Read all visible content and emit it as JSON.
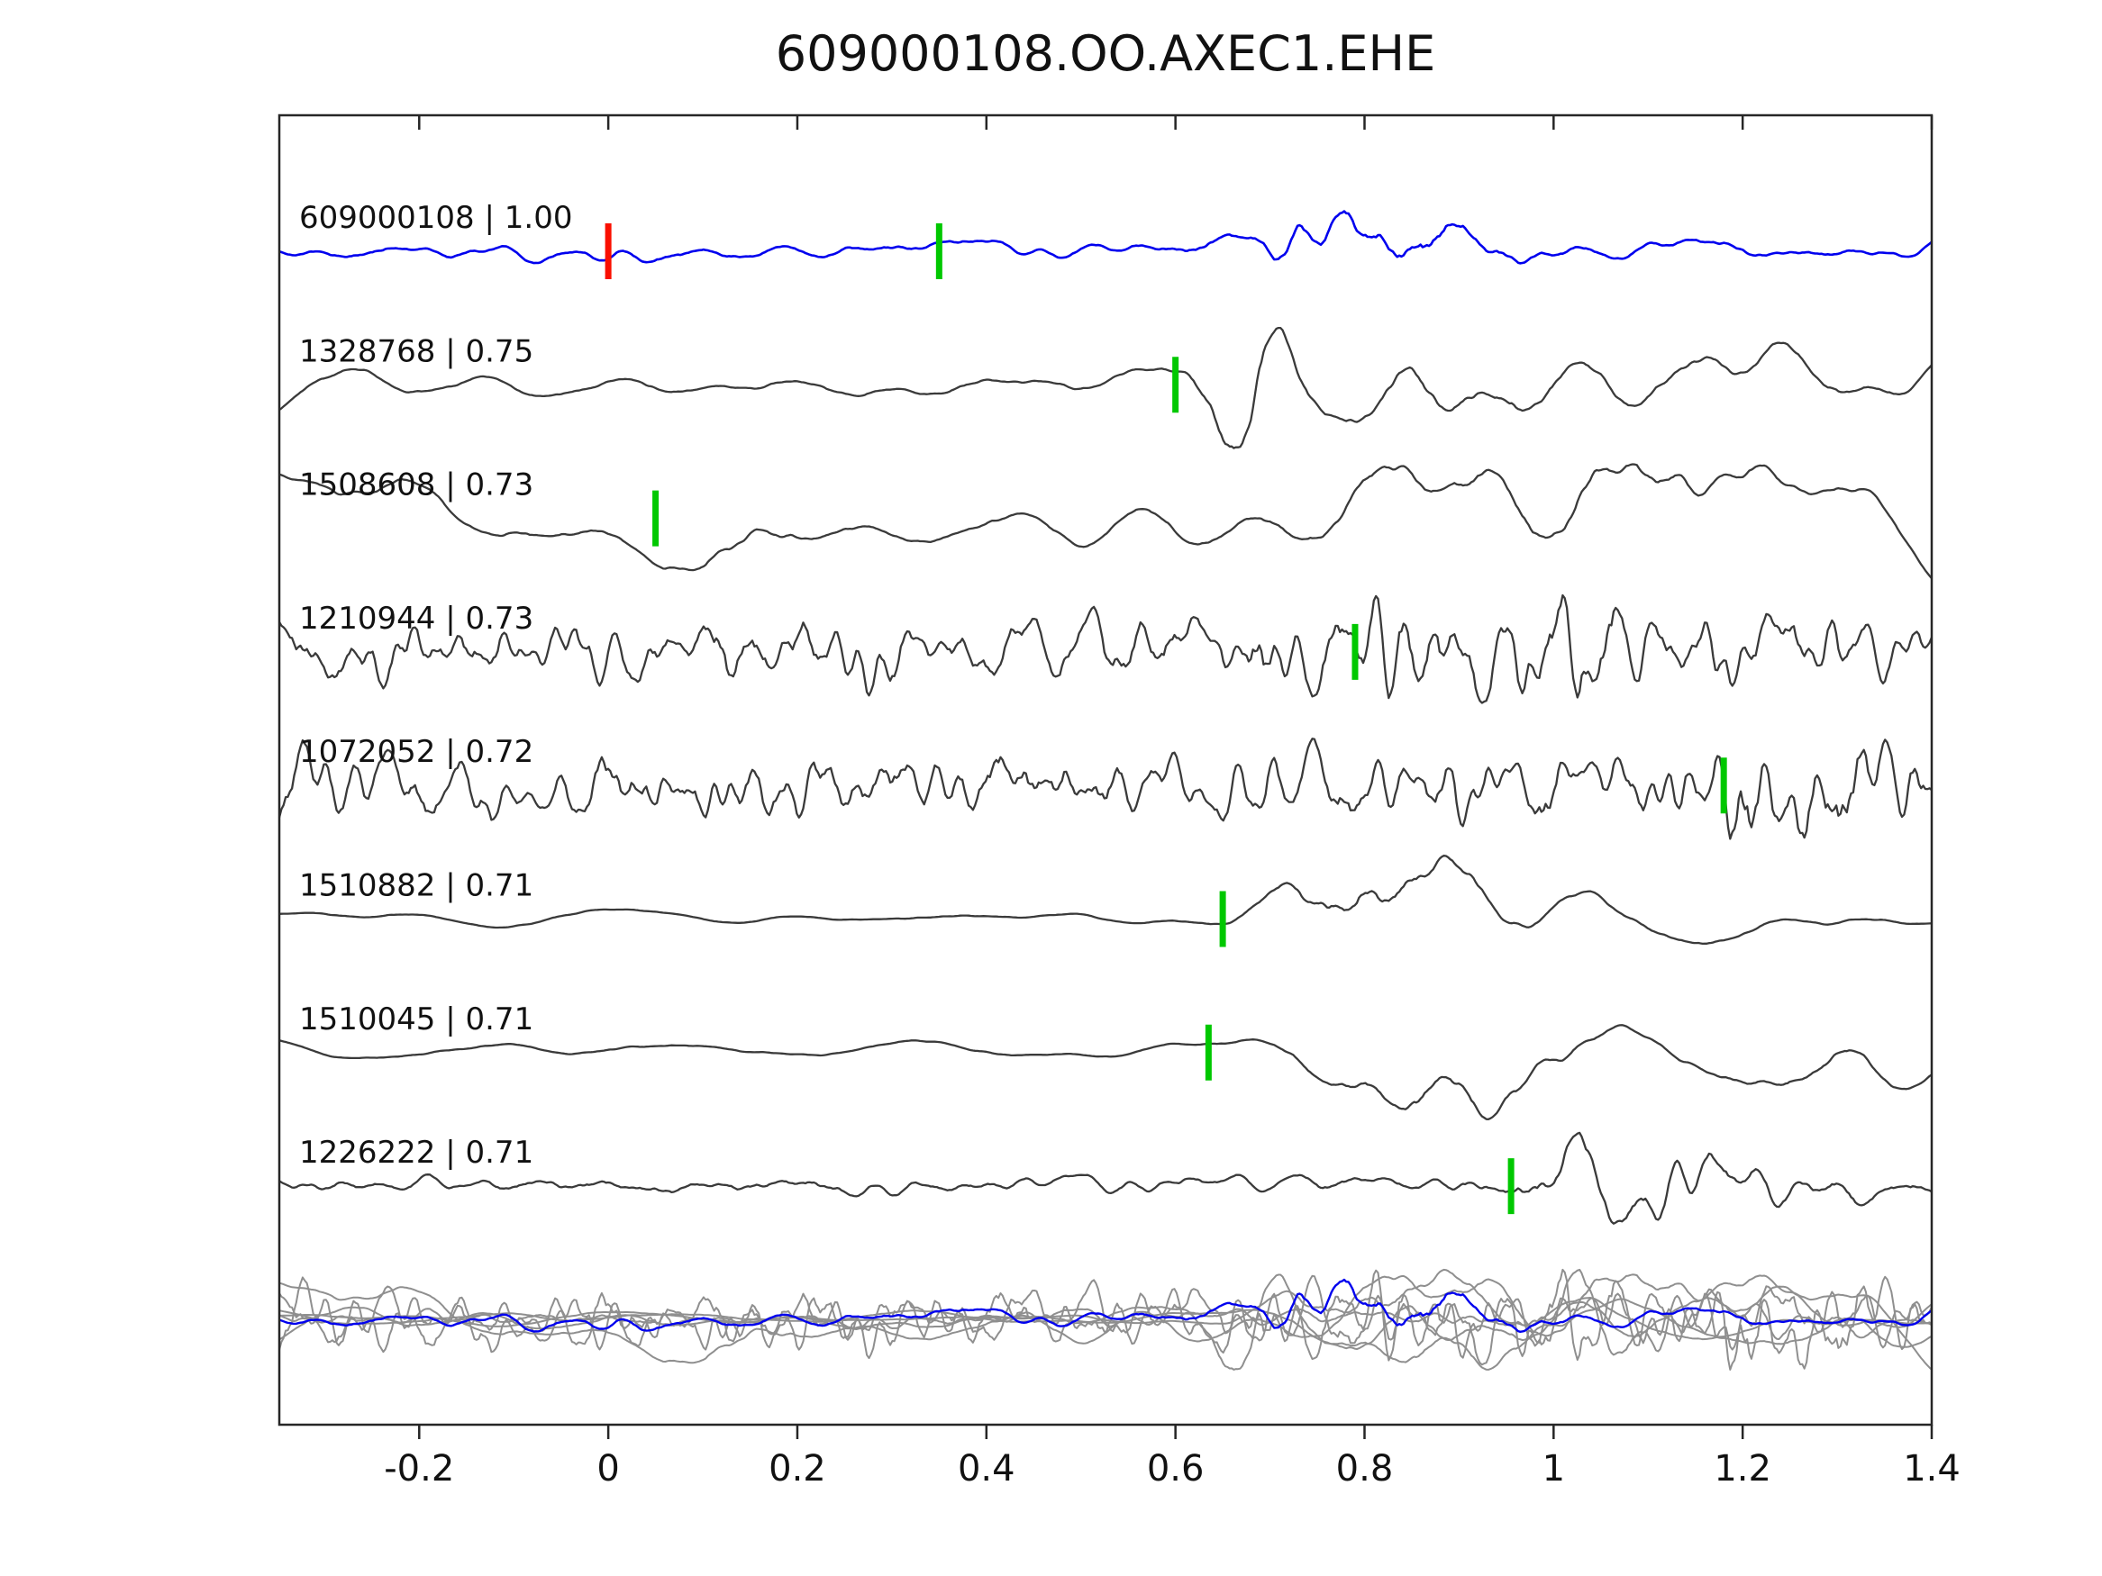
{
  "title": "609000108.OO.AXEC1.EHE",
  "colors": {
    "template_trace": "#0000ee",
    "detection_trace": "#3a3a3a",
    "overlay_gray": "#8f8f8f",
    "pick_green": "#00c800",
    "pick_red": "#fa0f00",
    "axis": "#262626",
    "text": "#111111",
    "background": "#ffffff"
  },
  "chart_data": {
    "type": "line",
    "title": "609000108.OO.AXEC1.EHE",
    "xlabel": "",
    "ylabel": "",
    "grid": false,
    "legend": false,
    "x_range": [
      -0.348,
      1.4
    ],
    "x_tick_values": [
      -0.2,
      0,
      0.2,
      0.4,
      0.6,
      0.8,
      1,
      1.2,
      1.4
    ],
    "x_tick_labels": [
      "-0.2",
      "0",
      "0.2",
      "0.4",
      "0.6",
      "0.8",
      "1",
      "1.2",
      "1.4"
    ],
    "traces": [
      {
        "label": "609000108 | 1.00",
        "id": "609000108",
        "correlation": "1.00",
        "role": "template",
        "color": "#0000ee",
        "picks": [
          {
            "x": 0.0,
            "kind": "red"
          },
          {
            "x": 0.35,
            "kind": "green"
          }
        ],
        "wave": {
          "seed": 17,
          "smooth": 5,
          "base": 0.3,
          "bursts": [
            [
              0.78,
              0.07,
              0.65
            ],
            [
              0.9,
              0.06,
              0.5
            ],
            [
              0.72,
              0.025,
              0.5
            ]
          ],
          "rel_amp": 0.6
        }
      },
      {
        "label": "1328768 | 0.75",
        "id": "1328768",
        "correlation": "0.75",
        "role": "detection",
        "color": "#3a3a3a",
        "picks": [
          {
            "x": 0.6,
            "kind": "green"
          }
        ],
        "wave": {
          "seed": 23,
          "smooth": 9,
          "base": 0.14,
          "bursts": [
            [
              0.68,
              0.035,
              1.0
            ],
            [
              0.85,
              0.12,
              0.3
            ],
            [
              1.15,
              0.2,
              0.22
            ]
          ],
          "rel_amp": 0.95
        }
      },
      {
        "label": "1508608 | 0.73",
        "id": "1508608",
        "correlation": "0.73",
        "role": "detection",
        "color": "#3a3a3a",
        "picks": [
          {
            "x": 0.05,
            "kind": "green"
          }
        ],
        "wave": {
          "seed": 31,
          "smooth": 14,
          "base": 0.32,
          "bursts": [
            [
              0.12,
              0.05,
              0.3
            ],
            [
              1.0,
              0.17,
              0.68
            ]
          ],
          "rel_amp": 0.9
        }
      },
      {
        "label": "1210944 | 0.73",
        "id": "1210944",
        "correlation": "0.73",
        "role": "detection",
        "color": "#3a3a3a",
        "picks": [
          {
            "x": 0.79,
            "kind": "green"
          }
        ],
        "wave": {
          "seed": 41,
          "smooth": 2,
          "base": 0.55,
          "bursts": [
            [
              0.95,
              0.22,
              0.45
            ]
          ],
          "rel_amp": 0.85
        }
      },
      {
        "label": "1072052 | 0.72",
        "id": "1072052",
        "correlation": "0.72",
        "role": "detection",
        "color": "#3a3a3a",
        "picks": [
          {
            "x": 1.18,
            "kind": "green"
          }
        ],
        "wave": {
          "seed": 53,
          "smooth": 2,
          "base": 0.5,
          "bursts": [
            [
              1.24,
              0.07,
              0.55
            ]
          ],
          "rel_amp": 0.8
        }
      },
      {
        "label": "1510882 | 0.71",
        "id": "1510882",
        "correlation": "0.71",
        "role": "detection",
        "color": "#3a3a3a",
        "picks": [
          {
            "x": 0.65,
            "kind": "green"
          }
        ],
        "wave": {
          "seed": 61,
          "smooth": 13,
          "base": 0.07,
          "bursts": [
            [
              0.82,
              0.07,
              1.0
            ],
            [
              1.05,
              0.15,
              0.18
            ]
          ],
          "rel_amp": 0.95
        }
      },
      {
        "label": "1510045 | 0.71",
        "id": "1510045",
        "correlation": "0.71",
        "role": "detection",
        "color": "#3a3a3a",
        "picks": [
          {
            "x": 0.635,
            "kind": "green"
          }
        ],
        "wave": {
          "seed": 71,
          "smooth": 13,
          "base": 0.1,
          "bursts": [
            [
              0.87,
              0.09,
              1.0
            ],
            [
              1.28,
              0.12,
              0.45
            ]
          ],
          "rel_amp": 1.0
        }
      },
      {
        "label": "1226222 | 0.71",
        "id": "1226222",
        "correlation": "0.71",
        "role": "detection",
        "color": "#3a3a3a",
        "picks": [
          {
            "x": 0.955,
            "kind": "green"
          }
        ],
        "wave": {
          "seed": 83,
          "smooth": 4,
          "base": 0.28,
          "bursts": [
            [
              1.07,
              0.08,
              0.85
            ],
            [
              1.25,
              0.1,
              0.3
            ]
          ],
          "rel_amp": 0.8
        }
      }
    ],
    "overlay_row": {
      "gray_color": "#8f8f8f",
      "template_color": "#0000ee",
      "members": [
        1,
        2,
        3,
        4,
        5,
        6,
        7
      ],
      "rel_amp": 0.75,
      "template_rel_amp": 0.6
    }
  }
}
